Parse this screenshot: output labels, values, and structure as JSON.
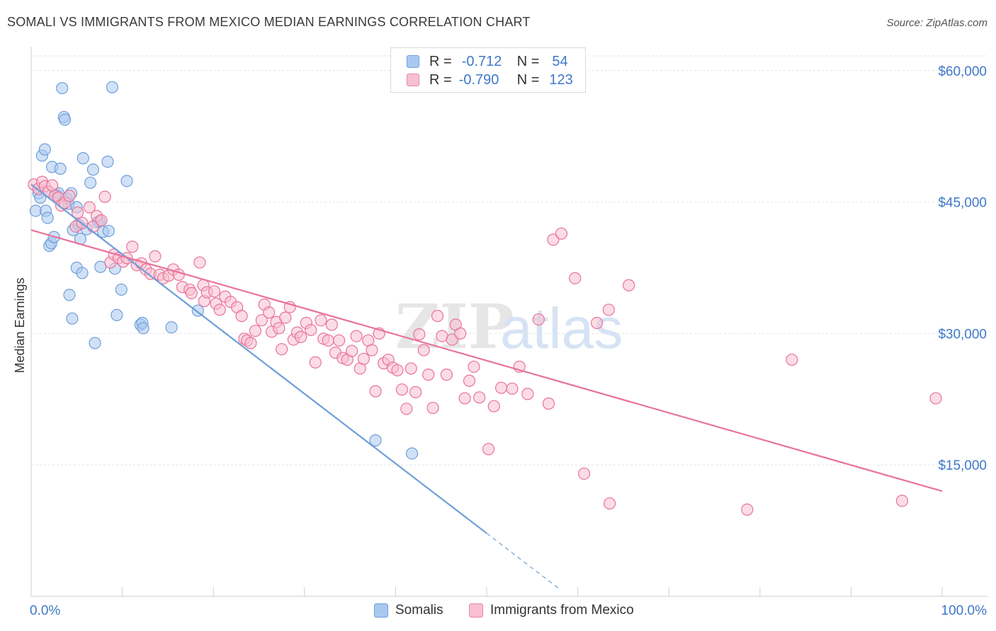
{
  "title": "SOMALI VS IMMIGRANTS FROM MEXICO MEDIAN EARNINGS CORRELATION CHART",
  "source": "Source: ZipAtlas.com",
  "watermark": {
    "zip": "ZIP",
    "atlas": "atlas"
  },
  "legend": {
    "r_label": "R =",
    "n_label": "N =",
    "rows": [
      {
        "series": "Somalis",
        "r": "-0.712",
        "n": "54",
        "color": "#a9c8f0",
        "border": "#6f9fd8"
      },
      {
        "series": "Immigrants from Mexico",
        "r": "-0.790",
        "n": "123",
        "color": "#f7bfd0",
        "border": "#e58aa8"
      }
    ]
  },
  "bottom_legend": [
    "Somalis",
    "Immigrants from Mexico"
  ],
  "chart_data": {
    "type": "scatter",
    "title": "SOMALI VS IMMIGRANTS FROM MEXICO MEDIAN EARNINGS CORRELATION CHART",
    "xlabel": "",
    "ylabel": "Median Earnings",
    "xlim": [
      0,
      100
    ],
    "ylim": [
      0,
      62000
    ],
    "x_tick_labels": [
      "0.0%",
      "100.0%"
    ],
    "y_ticks": [
      15000,
      30000,
      45000,
      60000
    ],
    "y_tick_labels": [
      "$15,000",
      "$30,000",
      "$45,000",
      "$60,000"
    ],
    "grid": true,
    "series": [
      {
        "name": "Somalis",
        "color": "#6f9fd8",
        "fill": "#a9c8f0",
        "trend": {
          "x0": 0,
          "y0": 47000,
          "x1": 50,
          "y1": 7200,
          "dash_to_x": 58
        },
        "points": [
          [
            0.5,
            44000
          ],
          [
            0.8,
            46000
          ],
          [
            1,
            45500
          ],
          [
            1.2,
            50300
          ],
          [
            1.5,
            51000
          ],
          [
            1.6,
            44000
          ],
          [
            1.8,
            43200
          ],
          [
            1.9,
            46200
          ],
          [
            2,
            40000
          ],
          [
            2.2,
            40300
          ],
          [
            2.3,
            49000
          ],
          [
            2.5,
            41000
          ],
          [
            2.8,
            45800
          ],
          [
            3,
            46000
          ],
          [
            3.2,
            48800
          ],
          [
            3.4,
            58000
          ],
          [
            3.6,
            54700
          ],
          [
            3.7,
            54400
          ],
          [
            3.9,
            45400
          ],
          [
            4.1,
            44800
          ],
          [
            4.2,
            34400
          ],
          [
            4.4,
            46000
          ],
          [
            4.5,
            31700
          ],
          [
            4.6,
            41800
          ],
          [
            5,
            44400
          ],
          [
            5,
            37500
          ],
          [
            5.2,
            42400
          ],
          [
            5.4,
            40800
          ],
          [
            5.6,
            36900
          ],
          [
            5.7,
            50000
          ],
          [
            6.1,
            41900
          ],
          [
            6.5,
            47200
          ],
          [
            6.8,
            48700
          ],
          [
            7,
            28900
          ],
          [
            7.3,
            42700
          ],
          [
            7.5,
            42800
          ],
          [
            7.6,
            37600
          ],
          [
            7.9,
            41600
          ],
          [
            8.4,
            49600
          ],
          [
            8.5,
            41700
          ],
          [
            8.9,
            58100
          ],
          [
            9.2,
            37400
          ],
          [
            9.4,
            32100
          ],
          [
            9.9,
            35000
          ],
          [
            10.5,
            47400
          ],
          [
            12,
            31000
          ],
          [
            12.2,
            31200
          ],
          [
            12.3,
            30600
          ],
          [
            15.4,
            30700
          ],
          [
            18.3,
            32600
          ],
          [
            37.8,
            17800
          ],
          [
            41.8,
            16300
          ]
        ]
      },
      {
        "name": "Immigrants from Mexico",
        "color": "#e8739a",
        "fill": "#f7bfd0",
        "trend": {
          "x0": 0,
          "y0": 41800,
          "x1": 100,
          "y1": 12000
        },
        "points": [
          [
            0.3,
            47000
          ],
          [
            0.8,
            46500
          ],
          [
            1.2,
            47300
          ],
          [
            1.5,
            46800
          ],
          [
            1.9,
            46200
          ],
          [
            2.3,
            46900
          ],
          [
            2.6,
            45700
          ],
          [
            3,
            45500
          ],
          [
            3.3,
            44600
          ],
          [
            3.7,
            44900
          ],
          [
            4.2,
            45700
          ],
          [
            4.9,
            42200
          ],
          [
            5.1,
            43800
          ],
          [
            5.6,
            42600
          ],
          [
            6.4,
            44400
          ],
          [
            6.8,
            42200
          ],
          [
            7.2,
            43400
          ],
          [
            7.7,
            42900
          ],
          [
            8.1,
            45600
          ],
          [
            8.7,
            38100
          ],
          [
            9.1,
            39000
          ],
          [
            9.6,
            38600
          ],
          [
            10.1,
            38200
          ],
          [
            10.5,
            38600
          ],
          [
            11.1,
            39900
          ],
          [
            11.6,
            37800
          ],
          [
            12.1,
            38000
          ],
          [
            12.6,
            37300
          ],
          [
            13.1,
            36800
          ],
          [
            13.6,
            38800
          ],
          [
            14.1,
            36700
          ],
          [
            14.5,
            36300
          ],
          [
            15.1,
            36600
          ],
          [
            15.6,
            37300
          ],
          [
            16.2,
            36700
          ],
          [
            16.6,
            35300
          ],
          [
            17.4,
            35000
          ],
          [
            17.6,
            34600
          ],
          [
            18.5,
            38100
          ],
          [
            18.9,
            35500
          ],
          [
            19,
            33700
          ],
          [
            19.3,
            34700
          ],
          [
            20.1,
            34800
          ],
          [
            20.3,
            33400
          ],
          [
            20.7,
            32700
          ],
          [
            21.3,
            34200
          ],
          [
            21.9,
            33600
          ],
          [
            22.6,
            33000
          ],
          [
            23.1,
            32000
          ],
          [
            23.4,
            29400
          ],
          [
            23.7,
            29200
          ],
          [
            24.1,
            28900
          ],
          [
            24.6,
            30300
          ],
          [
            25.3,
            31500
          ],
          [
            25.6,
            33300
          ],
          [
            26.1,
            32400
          ],
          [
            26.4,
            30200
          ],
          [
            26.9,
            31300
          ],
          [
            27.2,
            30600
          ],
          [
            27.5,
            28200
          ],
          [
            27.9,
            31800
          ],
          [
            28.4,
            33000
          ],
          [
            28.8,
            29300
          ],
          [
            29.2,
            30100
          ],
          [
            29.6,
            29600
          ],
          [
            30.2,
            31200
          ],
          [
            30.7,
            30400
          ],
          [
            31.2,
            26700
          ],
          [
            31.8,
            31500
          ],
          [
            32.1,
            29400
          ],
          [
            32.6,
            29200
          ],
          [
            33,
            31000
          ],
          [
            33.4,
            27800
          ],
          [
            33.8,
            29200
          ],
          [
            34.2,
            27200
          ],
          [
            34.7,
            27000
          ],
          [
            35.2,
            28000
          ],
          [
            35.7,
            29700
          ],
          [
            36.1,
            26000
          ],
          [
            36.5,
            27100
          ],
          [
            37,
            29200
          ],
          [
            37.4,
            28100
          ],
          [
            37.8,
            23400
          ],
          [
            38.2,
            30000
          ],
          [
            38.7,
            26600
          ],
          [
            39.2,
            27000
          ],
          [
            39.7,
            26100
          ],
          [
            40.2,
            25800
          ],
          [
            40.7,
            23600
          ],
          [
            41.2,
            21400
          ],
          [
            41.7,
            26000
          ],
          [
            42.2,
            23300
          ],
          [
            42.6,
            29900
          ],
          [
            43.1,
            28100
          ],
          [
            43.6,
            25300
          ],
          [
            44.1,
            21500
          ],
          [
            44.6,
            32000
          ],
          [
            45.1,
            29700
          ],
          [
            45.6,
            25300
          ],
          [
            46.2,
            29300
          ],
          [
            46.6,
            31000
          ],
          [
            47.1,
            30000
          ],
          [
            47.6,
            22600
          ],
          [
            48.1,
            24600
          ],
          [
            48.6,
            26200
          ],
          [
            49.2,
            22700
          ],
          [
            50.2,
            16800
          ],
          [
            50.8,
            21700
          ],
          [
            51.6,
            23800
          ],
          [
            52.8,
            23700
          ],
          [
            53.6,
            26200
          ],
          [
            54.5,
            23100
          ],
          [
            55.7,
            31600
          ],
          [
            56.8,
            22000
          ],
          [
            57.3,
            40700
          ],
          [
            58.2,
            41400
          ],
          [
            59.7,
            36300
          ],
          [
            60.7,
            14000
          ],
          [
            62.1,
            31200
          ],
          [
            63.4,
            32700
          ],
          [
            63.5,
            10600
          ],
          [
            65.6,
            35500
          ],
          [
            78.6,
            9900
          ],
          [
            83.5,
            27000
          ],
          [
            95.6,
            10900
          ],
          [
            99.3,
            22600
          ]
        ]
      }
    ]
  }
}
